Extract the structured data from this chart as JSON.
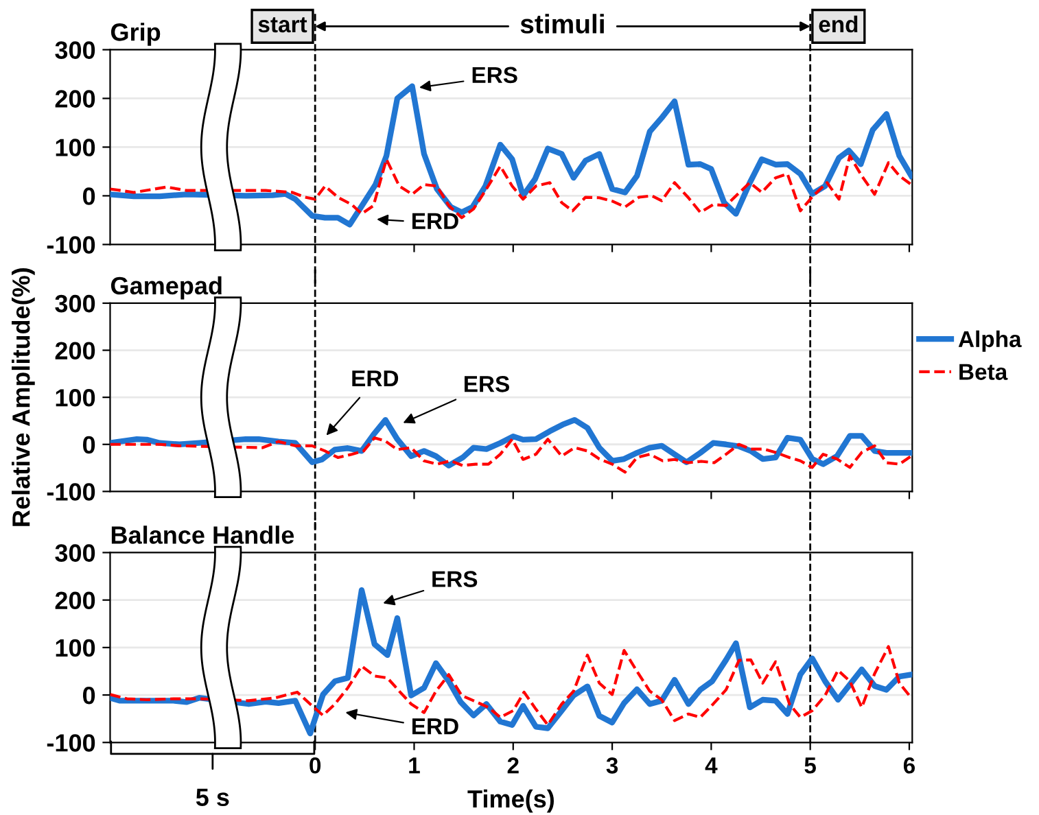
{
  "chart_data": [
    {
      "type": "line",
      "title": "Grip",
      "xlim": [
        -2.07,
        6.03
      ],
      "ylim": [
        -100,
        300
      ],
      "yticks": [
        -100,
        0,
        100,
        200,
        300
      ],
      "xticks": [
        0,
        1,
        2,
        3,
        4,
        5,
        6
      ],
      "tick_labels": "y",
      "grid": "y",
      "ref_lines": [
        {
          "axis": "x",
          "value": 0,
          "label": "start",
          "line_style": "dashed",
          "color": "#000000"
        },
        {
          "axis": "x",
          "value": 5,
          "label": "end",
          "line_style": "dashed",
          "color": "#000000"
        }
      ],
      "annotations": [
        "stimuli",
        "ERS",
        "ERD"
      ],
      "legend": "right",
      "series": [
        {
          "name": "Alpha",
          "color": "#2176d2",
          "line_style": "solid",
          "x": [
            -2.07,
            -1.83,
            -1.57,
            -1.3,
            -0.7,
            -0.43,
            -0.3,
            -0.2,
            -0.03,
            0.1,
            0.23,
            0.35,
            0.48,
            0.61,
            0.72,
            0.83,
            0.98,
            1.1,
            1.23,
            1.37,
            1.48,
            1.59,
            1.72,
            1.87,
            1.99,
            2.1,
            2.22,
            2.35,
            2.49,
            2.61,
            2.73,
            2.87,
            3.0,
            3.13,
            3.25,
            3.38,
            3.5,
            3.63,
            3.77,
            3.89,
            4.0,
            4.13,
            4.25,
            4.39,
            4.51,
            4.65,
            4.77,
            4.9,
            5.02,
            5.15,
            5.29,
            5.39,
            5.51,
            5.63,
            5.77,
            5.9,
            6.02
          ],
          "values": [
            3,
            -1,
            -1,
            3,
            0,
            1,
            4,
            -7,
            -41,
            -45,
            -45,
            -59,
            -18,
            23,
            82,
            200,
            225,
            86,
            14,
            -23,
            -34,
            -23,
            20,
            105,
            75,
            0,
            34,
            97,
            86,
            37,
            72,
            86,
            14,
            7,
            41,
            132,
            160,
            194,
            64,
            65,
            55,
            -14,
            -37,
            27,
            75,
            64,
            65,
            45,
            4,
            20,
            78,
            93,
            65,
            135,
            168,
            82,
            41
          ]
        },
        {
          "name": "Beta",
          "color": "#ff0000",
          "line_style": "dashed",
          "x": [
            -2.07,
            -1.83,
            -1.5,
            -1.3,
            -0.5,
            -0.23,
            -0.1,
            0,
            0.1,
            0.23,
            0.37,
            0.47,
            0.59,
            0.72,
            0.85,
            0.98,
            1.1,
            1.23,
            1.35,
            1.48,
            1.6,
            1.73,
            1.87,
            1.99,
            2.1,
            2.23,
            2.37,
            2.49,
            2.6,
            2.73,
            2.87,
            3.0,
            3.13,
            3.27,
            3.4,
            3.5,
            3.63,
            3.77,
            3.89,
            4.02,
            4.15,
            4.25,
            4.39,
            4.51,
            4.65,
            4.77,
            4.9,
            5.03,
            5.17,
            5.29,
            5.4,
            5.52,
            5.65,
            5.79,
            5.9,
            6.02
          ],
          "values": [
            14,
            7,
            18,
            11,
            11,
            7,
            -3,
            -7,
            20,
            -3,
            -18,
            -37,
            -20,
            75,
            20,
            3,
            23,
            20,
            -20,
            -45,
            -27,
            14,
            61,
            20,
            -7,
            20,
            27,
            -14,
            -31,
            -3,
            -4,
            -11,
            -23,
            -3,
            0,
            -10,
            27,
            -4,
            -34,
            -18,
            -20,
            0,
            27,
            7,
            37,
            45,
            -31,
            0,
            27,
            -7,
            82,
            41,
            3,
            68,
            41,
            23
          ]
        }
      ]
    },
    {
      "type": "line",
      "title": "Gamepad",
      "ylabel": "Relative Amplitude(%)",
      "xlim": [
        -2.07,
        6.03
      ],
      "ylim": [
        -100,
        300
      ],
      "yticks": [
        -100,
        0,
        100,
        200,
        300
      ],
      "xticks": [
        0,
        1,
        2,
        3,
        4,
        5,
        6
      ],
      "tick_labels": "y",
      "grid": "y",
      "ref_lines": [
        {
          "axis": "x",
          "value": 0,
          "label": null,
          "line_style": "dashed",
          "color": "#000000"
        },
        {
          "axis": "x",
          "value": 5,
          "label": null,
          "line_style": "dashed",
          "color": "#000000"
        }
      ],
      "annotations": [
        "ERD",
        "ERS"
      ],
      "series": [
        {
          "color": "#2176d2",
          "line_style": "solid",
          "x": [
            -2.07,
            -1.8,
            -1.7,
            -1.57,
            -1.37,
            -1.17,
            -0.7,
            -0.57,
            -0.37,
            -0.2,
            -0.03,
            0.07,
            0.2,
            0.33,
            0.47,
            0.59,
            0.71,
            0.83,
            0.97,
            1.1,
            1.22,
            1.35,
            1.49,
            1.6,
            1.73,
            1.87,
            2.0,
            2.1,
            2.23,
            2.37,
            2.5,
            2.62,
            2.75,
            2.87,
            3.0,
            3.12,
            3.25,
            3.38,
            3.5,
            3.63,
            3.75,
            3.89,
            4.02,
            4.15,
            4.28,
            4.4,
            4.52,
            4.65,
            4.77,
            4.9,
            5.02,
            5.13,
            5.27,
            5.4,
            5.52,
            5.65,
            5.77,
            6.02
          ],
          "values": [
            3,
            11,
            10,
            3,
            0,
            3,
            11,
            11,
            6,
            3,
            -38,
            -32,
            -11,
            -8,
            -14,
            21,
            52,
            11,
            -25,
            -14,
            -25,
            -45,
            -28,
            -7,
            -10,
            3,
            17,
            10,
            11,
            28,
            42,
            52,
            35,
            -7,
            -35,
            -31,
            -18,
            -7,
            -3,
            -21,
            -38,
            -18,
            3,
            0,
            -4,
            -14,
            -31,
            -28,
            14,
            10,
            -31,
            -42,
            -25,
            18,
            18,
            -14,
            -18,
            -18
          ]
        },
        {
          "color": "#ff0000",
          "line_style": "dashed",
          "x": [
            -2.07,
            -1.83,
            -1.57,
            -1.37,
            -1.17,
            -0.53,
            -0.37,
            -0.2,
            -0.03,
            0.1,
            0.23,
            0.37,
            0.49,
            0.6,
            0.71,
            0.83,
            0.97,
            1.1,
            1.23,
            1.37,
            1.49,
            1.62,
            1.75,
            1.87,
            1.99,
            2.1,
            2.23,
            2.35,
            2.49,
            2.62,
            2.75,
            2.87,
            3.0,
            3.13,
            3.25,
            3.38,
            3.51,
            3.63,
            3.77,
            3.9,
            4.03,
            4.15,
            4.28,
            4.4,
            4.53,
            4.65,
            4.79,
            4.9,
            5.02,
            5.13,
            5.27,
            5.4,
            5.52,
            5.65,
            5.77,
            5.9,
            6.02
          ],
          "values": [
            0,
            0,
            0,
            -3,
            -4,
            -7,
            6,
            -3,
            -3,
            -14,
            -28,
            -21,
            -14,
            14,
            7,
            -11,
            -7,
            -35,
            -42,
            -35,
            -45,
            -42,
            -42,
            -21,
            11,
            -32,
            -21,
            11,
            -25,
            -7,
            -14,
            -31,
            -42,
            -59,
            -28,
            -21,
            -35,
            -32,
            -39,
            -36,
            -39,
            -21,
            0,
            -10,
            -10,
            -17,
            -28,
            -35,
            -49,
            -21,
            -31,
            -49,
            -17,
            -3,
            -39,
            -42,
            -25
          ]
        }
      ]
    },
    {
      "type": "line",
      "title": "Balance Handle",
      "xlabel": "Time(s)",
      "xlim": [
        -2.07,
        6.03
      ],
      "ylim": [
        -100,
        300
      ],
      "yticks": [
        -100,
        0,
        100,
        200,
        300
      ],
      "xticks": [
        0,
        1,
        2,
        3,
        4,
        5,
        6
      ],
      "grid": "y",
      "ref_lines": [
        {
          "axis": "x",
          "value": 0,
          "label": null,
          "line_style": "dashed",
          "color": "#000000"
        },
        {
          "axis": "x",
          "value": 5,
          "label": null,
          "line_style": "dashed",
          "color": "#000000"
        }
      ],
      "annotations": [
        "ERS",
        "ERD",
        "5 s"
      ],
      "series": [
        {
          "color": "#2176d2",
          "line_style": "solid",
          "x": [
            -2.07,
            -1.97,
            -1.7,
            -1.43,
            -1.3,
            -1.17,
            -0.67,
            -0.5,
            -0.37,
            -0.2,
            -0.05,
            0.08,
            0.2,
            0.33,
            0.47,
            0.6,
            0.73,
            0.83,
            0.97,
            1.1,
            1.22,
            1.35,
            1.47,
            1.6,
            1.73,
            1.87,
            1.99,
            2.1,
            2.23,
            2.35,
            2.49,
            2.61,
            2.75,
            2.87,
            3.0,
            3.12,
            3.25,
            3.38,
            3.5,
            3.63,
            3.77,
            3.89,
            4.01,
            4.15,
            4.25,
            4.39,
            4.52,
            4.65,
            4.77,
            4.9,
            5.02,
            5.15,
            5.28,
            5.4,
            5.52,
            5.65,
            5.77,
            5.9,
            6.02
          ],
          "values": [
            -6,
            -12,
            -12,
            -12,
            -15,
            -6,
            -19,
            -14,
            -17,
            -12,
            -81,
            1,
            29,
            36,
            221,
            107,
            84,
            162,
            -1,
            15,
            67,
            29,
            -15,
            -43,
            -19,
            -56,
            -63,
            -23,
            -67,
            -70,
            -33,
            -1,
            18,
            -44,
            -58,
            -17,
            12,
            -19,
            -12,
            32,
            -19,
            11,
            29,
            74,
            109,
            -26,
            -10,
            -12,
            -40,
            43,
            77,
            29,
            -10,
            22,
            54,
            19,
            11,
            39,
            43
          ]
        },
        {
          "color": "#ff0000",
          "line_style": "dashed",
          "x": [
            -2.07,
            -1.9,
            -1.7,
            -1.43,
            -1.17,
            -0.67,
            -0.4,
            -0.18,
            -0.05,
            0.08,
            0.2,
            0.33,
            0.47,
            0.6,
            0.73,
            0.85,
            0.97,
            1.1,
            1.22,
            1.35,
            1.48,
            1.6,
            1.75,
            1.87,
            2.0,
            2.11,
            2.23,
            2.35,
            2.49,
            2.61,
            2.75,
            2.87,
            3.0,
            3.12,
            3.25,
            3.38,
            3.5,
            3.63,
            3.77,
            3.89,
            4.02,
            4.15,
            4.28,
            4.4,
            4.52,
            4.65,
            4.79,
            4.9,
            5.02,
            5.15,
            5.28,
            5.4,
            5.52,
            5.65,
            5.79,
            5.9,
            6.02
          ],
          "values": [
            1,
            -8,
            -10,
            -8,
            -8,
            -12,
            -6,
            6,
            -19,
            -43,
            -19,
            15,
            61,
            40,
            36,
            8,
            -19,
            -37,
            8,
            43,
            -1,
            -12,
            -26,
            -47,
            -33,
            6,
            -30,
            -63,
            -19,
            8,
            84,
            25,
            1,
            94,
            50,
            8,
            -10,
            -54,
            -40,
            -47,
            -19,
            11,
            73,
            74,
            25,
            70,
            -19,
            -47,
            -33,
            -1,
            52,
            29,
            -26,
            45,
            102,
            25,
            -6
          ]
        }
      ]
    }
  ]
}
